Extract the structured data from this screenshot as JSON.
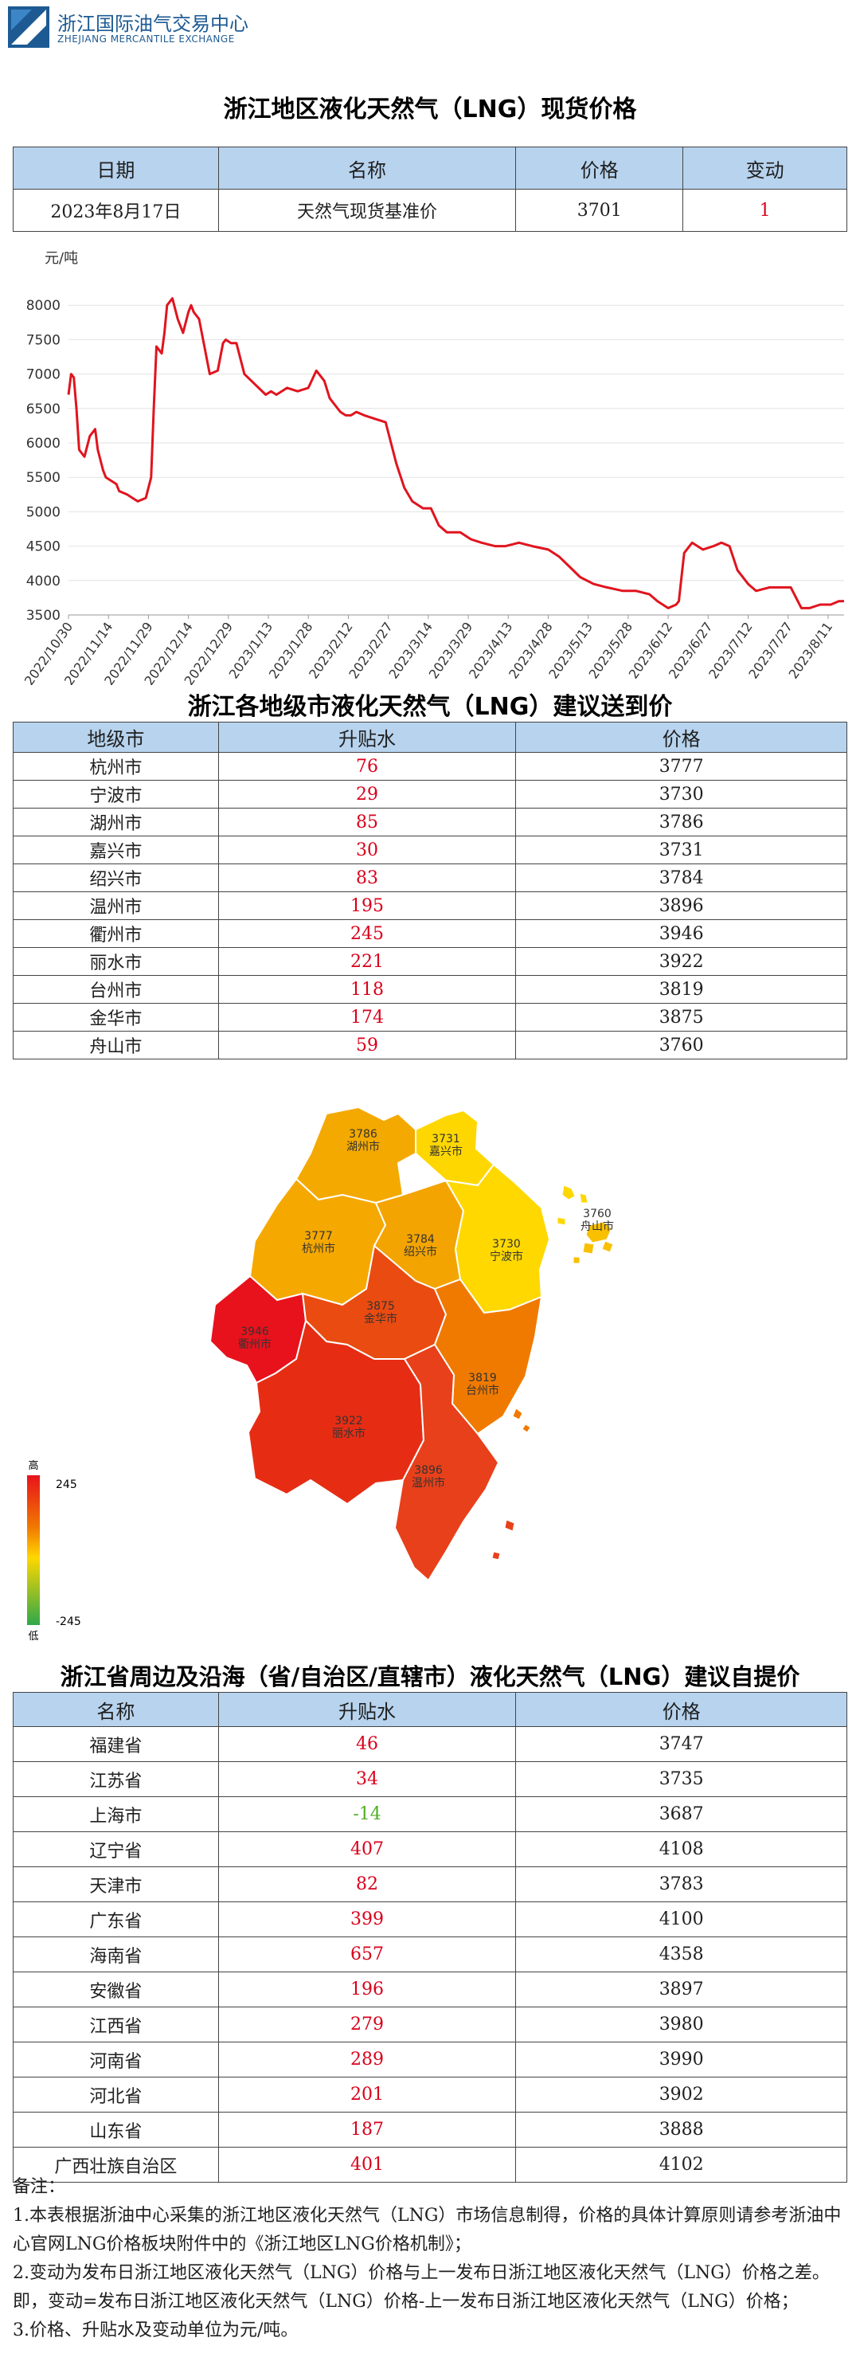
{
  "header": {
    "org_cn": "浙江国际油气交易中心",
    "org_en": "ZHEJIANG MERCANTILE EXCHANGE"
  },
  "spot": {
    "title": "浙江地区液化天然气（LNG）现货价格",
    "headers": [
      "日期",
      "名称",
      "价格",
      "变动"
    ],
    "row": {
      "date": "2023年8月17日",
      "name": "天然气现货基准价",
      "price": "3701",
      "change": "1"
    }
  },
  "chart_data": {
    "type": "line",
    "ylabel": "元/吨",
    "ylim": [
      3500,
      8500
    ],
    "yticks": [
      3500,
      4000,
      4500,
      5000,
      5500,
      6000,
      6500,
      7000,
      7500,
      8000
    ],
    "xticks": [
      "2022/10/30",
      "2022/11/14",
      "2022/11/29",
      "2022/12/14",
      "2022/12/29",
      "2023/1/13",
      "2023/1/28",
      "2023/2/12",
      "2023/2/27",
      "2023/3/14",
      "2023/3/29",
      "2023/4/13",
      "2023/4/28",
      "2023/5/13",
      "2023/5/28",
      "2023/6/12",
      "2023/6/27",
      "2023/7/12",
      "2023/7/27",
      "2023/8/11"
    ],
    "grid": true,
    "color": "#e0141e",
    "series": [
      {
        "x": [
          "2022/10/30",
          "2022/10/31",
          "2022/11/1",
          "2022/11/2",
          "2022/11/3",
          "2022/11/4",
          "2022/11/5",
          "2022/11/7",
          "2022/11/9",
          "2022/11/10",
          "2022/11/12",
          "2022/11/13",
          "2022/11/15",
          "2022/11/17",
          "2022/11/18",
          "2022/11/21",
          "2022/11/23",
          "2022/11/25",
          "2022/11/28",
          "2022/11/30",
          "2022/12/1",
          "2022/12/2",
          "2022/12/4",
          "2022/12/5",
          "2022/12/6",
          "2022/12/8",
          "2022/12/10",
          "2022/12/12",
          "2022/12/14",
          "2022/12/15",
          "2022/12/16",
          "2022/12/18",
          "2022/12/20",
          "2022/12/22",
          "2022/12/25",
          "2022/12/27",
          "2022/12/28",
          "2022/12/30",
          "2023/1/1",
          "2023/1/4",
          "2023/1/8",
          "2023/1/12",
          "2023/1/14",
          "2023/1/16",
          "2023/1/18",
          "2023/1/20",
          "2023/1/24",
          "2023/1/28",
          "2023/1/31",
          "2023/2/3",
          "2023/2/5",
          "2023/2/7",
          "2023/2/9",
          "2023/2/11",
          "2023/2/13",
          "2023/2/15",
          "2023/2/18",
          "2023/2/22",
          "2023/2/26",
          "2023/2/28",
          "2023/3/2",
          "2023/3/5",
          "2023/3/8",
          "2023/3/12",
          "2023/3/15",
          "2023/3/18",
          "2023/3/21",
          "2023/3/24",
          "2023/3/26",
          "2023/3/30",
          "2023/4/3",
          "2023/4/8",
          "2023/4/12",
          "2023/4/17",
          "2023/4/22",
          "2023/4/28",
          "2023/5/2",
          "2023/5/6",
          "2023/5/10",
          "2023/5/15",
          "2023/5/20",
          "2023/5/26",
          "2023/5/31",
          "2023/6/5",
          "2023/6/8",
          "2023/6/12",
          "2023/6/15",
          "2023/6/16",
          "2023/6/18",
          "2023/6/21",
          "2023/6/25",
          "2023/6/29",
          "2023/7/2",
          "2023/7/5",
          "2023/7/8",
          "2023/7/12",
          "2023/7/15",
          "2023/7/20",
          "2023/7/25",
          "2023/7/28",
          "2023/8/1",
          "2023/8/4",
          "2023/8/8",
          "2023/8/12",
          "2023/8/15",
          "2023/8/17"
        ],
        "values": [
          6700,
          7000,
          6950,
          6500,
          5900,
          5850,
          5800,
          6100,
          6200,
          5900,
          5600,
          5500,
          5450,
          5400,
          5300,
          5250,
          5200,
          5150,
          5200,
          5500,
          6500,
          7400,
          7300,
          7600,
          8000,
          8100,
          7800,
          7600,
          7900,
          8000,
          7900,
          7800,
          7400,
          7000,
          7050,
          7450,
          7500,
          7450,
          7450,
          7000,
          6850,
          6700,
          6750,
          6700,
          6750,
          6800,
          6750,
          6800,
          7050,
          6900,
          6650,
          6550,
          6450,
          6400,
          6400,
          6450,
          6400,
          6350,
          6300,
          6000,
          5700,
          5350,
          5150,
          5050,
          5050,
          4800,
          4700,
          4700,
          4700,
          4600,
          4550,
          4500,
          4500,
          4550,
          4500,
          4450,
          4350,
          4200,
          4050,
          3950,
          3900,
          3850,
          3850,
          3800,
          3700,
          3600,
          3650,
          3700,
          4400,
          4550,
          4450,
          4500,
          4550,
          4500,
          4150,
          3950,
          3850,
          3900,
          3900,
          3900,
          3600,
          3600,
          3650,
          3650,
          3700,
          3701
        ]
      }
    ]
  },
  "city": {
    "title": "浙江各地级市液化天然气（LNG）建议送到价",
    "headers": [
      "地级市",
      "升贴水",
      "价格"
    ],
    "rows": [
      {
        "name": "杭州市",
        "premium": "76",
        "price": "3777"
      },
      {
        "name": "宁波市",
        "premium": "29",
        "price": "3730"
      },
      {
        "name": "湖州市",
        "premium": "85",
        "price": "3786"
      },
      {
        "name": "嘉兴市",
        "premium": "30",
        "price": "3731"
      },
      {
        "name": "绍兴市",
        "premium": "83",
        "price": "3784"
      },
      {
        "name": "温州市",
        "premium": "195",
        "price": "3896"
      },
      {
        "name": "衢州市",
        "premium": "245",
        "price": "3946"
      },
      {
        "name": "丽水市",
        "premium": "221",
        "price": "3922"
      },
      {
        "name": "台州市",
        "premium": "118",
        "price": "3819"
      },
      {
        "name": "金华市",
        "premium": "174",
        "price": "3875"
      },
      {
        "name": "舟山市",
        "premium": "59",
        "price": "3760"
      }
    ]
  },
  "map": {
    "regions": [
      {
        "name": "湖州市",
        "price": "3786",
        "color": "#f4a900"
      },
      {
        "name": "嘉兴市",
        "price": "3731",
        "color": "#ffd700"
      },
      {
        "name": "杭州市",
        "price": "3777",
        "color": "#f5a800"
      },
      {
        "name": "绍兴市",
        "price": "3784",
        "color": "#f3a400"
      },
      {
        "name": "宁波市",
        "price": "3730",
        "color": "#ffd800"
      },
      {
        "name": "舟山市",
        "price": "3760",
        "color": "#f9c000"
      },
      {
        "name": "衢州市",
        "price": "3946",
        "color": "#e8121c"
      },
      {
        "name": "金华市",
        "price": "3875",
        "color": "#ea4b10"
      },
      {
        "name": "台州市",
        "price": "3819",
        "color": "#f07a00"
      },
      {
        "name": "丽水市",
        "price": "3922",
        "color": "#e62d14"
      },
      {
        "name": "温州市",
        "price": "3896",
        "color": "#e8401a"
      }
    ],
    "legend": {
      "high": "高",
      "low": "低",
      "max": "245",
      "min": "-245"
    }
  },
  "province": {
    "title": "浙江省周边及沿海（省/自治区/直辖市）液化天然气（LNG）建议自提价",
    "headers": [
      "名称",
      "升贴水",
      "价格"
    ],
    "rows": [
      {
        "name": "福建省",
        "premium": "46",
        "price": "3747",
        "neg": false
      },
      {
        "name": "江苏省",
        "premium": "34",
        "price": "3735",
        "neg": false
      },
      {
        "name": "上海市",
        "premium": "-14",
        "price": "3687",
        "neg": true
      },
      {
        "name": "辽宁省",
        "premium": "407",
        "price": "4108",
        "neg": false
      },
      {
        "name": "天津市",
        "premium": "82",
        "price": "3783",
        "neg": false
      },
      {
        "name": "广东省",
        "premium": "399",
        "price": "4100",
        "neg": false
      },
      {
        "name": "海南省",
        "premium": "657",
        "price": "4358",
        "neg": false
      },
      {
        "name": "安徽省",
        "premium": "196",
        "price": "3897",
        "neg": false
      },
      {
        "name": "江西省",
        "premium": "279",
        "price": "3980",
        "neg": false
      },
      {
        "name": "河南省",
        "premium": "289",
        "price": "3990",
        "neg": false
      },
      {
        "name": "河北省",
        "premium": "201",
        "price": "3902",
        "neg": false
      },
      {
        "name": "山东省",
        "premium": "187",
        "price": "3888",
        "neg": false
      },
      {
        "name": "广西壮族自治区",
        "premium": "401",
        "price": "4102",
        "neg": false
      }
    ]
  },
  "notes": {
    "heading": "备注：",
    "items": [
      "1.本表根据浙油中心采集的浙江地区液化天然气（LNG）市场信息制得，价格的具体计算原则请参考浙油中心官网LNG价格板块附件中的《浙江地区LNG价格机制》；",
      "2.变动为发布日浙江地区液化天然气（LNG）价格与上一发布日浙江地区液化天然气（LNG）价格之差。即，变动=发布日浙江地区液化天然气（LNG）价格-上一发布日浙江地区液化天然气（LNG）价格；",
      "3.价格、升贴水及变动单位为元/吨。"
    ]
  }
}
